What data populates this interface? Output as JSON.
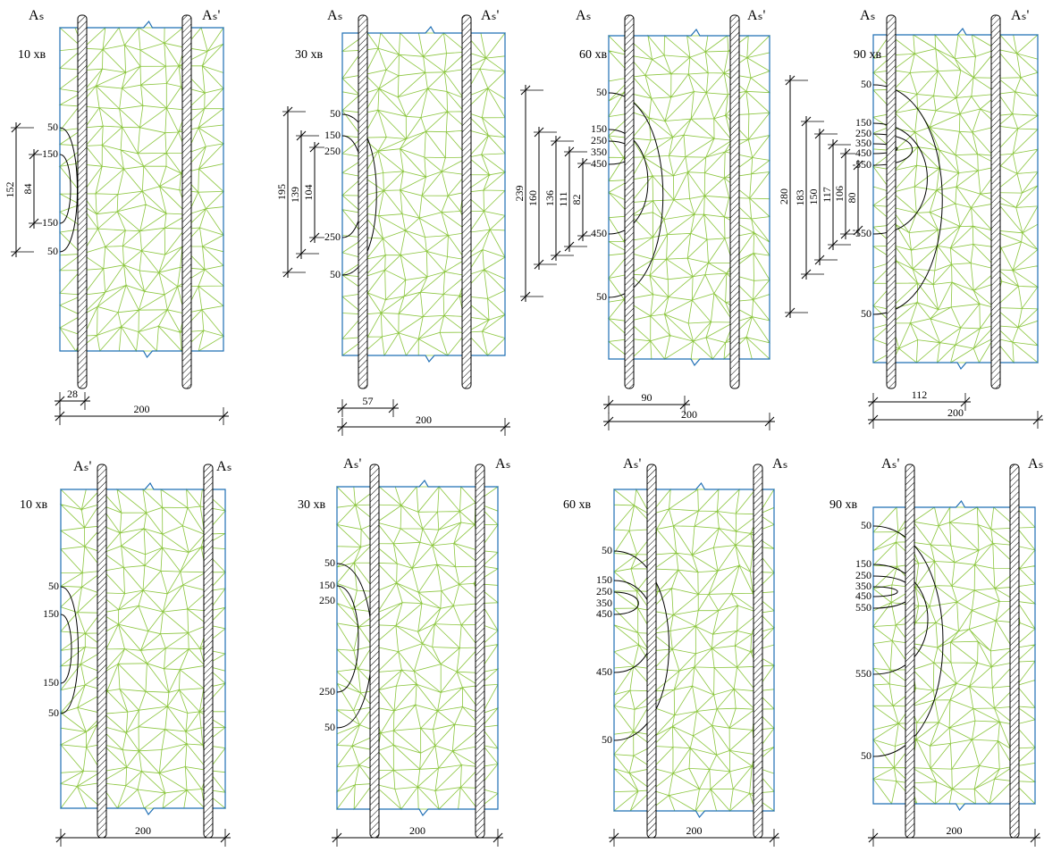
{
  "panels": [
    {
      "time": "10 хв",
      "rebar_left": "Aₛ",
      "rebar_right": "Aₛ'",
      "isotherm_labels": [
        "50",
        "150",
        "150",
        "50"
      ],
      "dimensions": [
        "152",
        "84"
      ],
      "depth": "28",
      "width": "200"
    },
    {
      "time": "30 хв",
      "rebar_left": "Aₛ",
      "rebar_right": "Aₛ'",
      "isotherm_labels": [
        "50",
        "150",
        "250",
        "250",
        "50"
      ],
      "dimensions": [
        "195",
        "139",
        "104"
      ],
      "depth": "57",
      "width": "200"
    },
    {
      "time": "60 хв",
      "rebar_left": "Aₛ",
      "rebar_right": "Aₛ'",
      "isotherm_labels": [
        "50",
        "150",
        "250",
        "350",
        "450",
        "450",
        "50"
      ],
      "dimensions": [
        "239",
        "160",
        "136",
        "111",
        "82"
      ],
      "depth": "90",
      "width": "200"
    },
    {
      "time": "90 хв",
      "rebar_left": "Aₛ",
      "rebar_right": "Aₛ'",
      "isotherm_labels": [
        "50",
        "150",
        "250",
        "350",
        "450",
        "550",
        "550",
        "50"
      ],
      "dimensions": [
        "280",
        "183",
        "150",
        "117",
        "106",
        "80"
      ],
      "depth": "112",
      "width": "200"
    },
    {
      "time": "10 хв",
      "rebar_left": "Aₛ'",
      "rebar_right": "Aₛ",
      "isotherm_labels": [
        "50",
        "150",
        "150",
        "50"
      ],
      "width": "200"
    },
    {
      "time": "30 хв",
      "rebar_left": "Aₛ'",
      "rebar_right": "Aₛ",
      "isotherm_labels": [
        "50",
        "150",
        "250",
        "250",
        "50"
      ],
      "width": "200"
    },
    {
      "time": "60 хв",
      "rebar_left": "Aₛ'",
      "rebar_right": "Aₛ",
      "isotherm_labels": [
        "50",
        "150",
        "250",
        "350",
        "450",
        "450",
        "50"
      ],
      "width": "200"
    },
    {
      "time": "90 хв",
      "rebar_left": "Aₛ'",
      "rebar_right": "Aₛ",
      "isotherm_labels": [
        "50",
        "150",
        "250",
        "350",
        "450",
        "550",
        "550",
        "50"
      ],
      "width": "200"
    }
  ]
}
